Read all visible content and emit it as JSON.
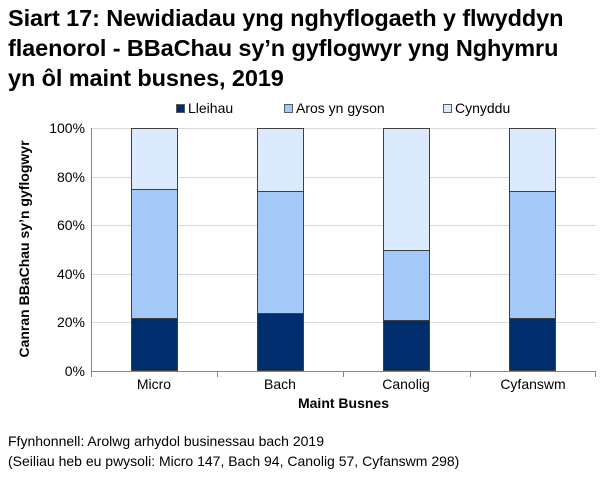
{
  "title": {
    "lines": [
      "Siart 17: Newidiadau yng nghyflogaeth y flwyddyn",
      "flaenorol - BBaChau sy’n gyflogwyr yng Nghymru",
      "yn ôl maint busnes, 2019"
    ]
  },
  "legend": [
    {
      "label": "Lleihau",
      "color": "#002D6B"
    },
    {
      "label": "Aros yn gyson",
      "color": "#A4C8F8"
    },
    {
      "label": "Cynyddu",
      "color": "#DCEAFE"
    }
  ],
  "axes": {
    "y_title": "Canran BBaChau sy’n gyflogwyr",
    "y_ticks": [
      "100%",
      "80%",
      "60%",
      "40%",
      "20%",
      "0%"
    ],
    "x_title": "Maint Busnes"
  },
  "source": {
    "line1": "Ffynhonnell: Arolwg arhydol businessau bach 2019",
    "line2": "(Seiliau heb eu pwysoli: Micro 147, Bach 94, Canolig 57, Cyfanswm 298)"
  },
  "chart_data": {
    "type": "bar",
    "stacked": true,
    "percent_stacked": true,
    "title": "Siart 17: Newidiadau yng nghyflogaeth y flwyddyn flaenorol - BBaChau sy’n gyflogwyr yng Nghymru yn ôl maint busnes, 2019",
    "xlabel": "Maint Busnes",
    "ylabel": "Canran BBaChau sy’n gyflogwyr",
    "ylim": [
      0,
      100
    ],
    "yticks": [
      0,
      20,
      40,
      60,
      80,
      100
    ],
    "ytick_format": "percent",
    "grid": true,
    "legend_position": "top",
    "categories": [
      "Micro",
      "Bach",
      "Canolig",
      "Cyfanswm"
    ],
    "series": [
      {
        "name": "Lleihau",
        "color": "#002D6B",
        "values": [
          22,
          24,
          21,
          22
        ]
      },
      {
        "name": "Aros yn gyson",
        "color": "#A4C8F8",
        "values": [
          53,
          50,
          29,
          52
        ]
      },
      {
        "name": "Cynyddu",
        "color": "#DCEAFE",
        "values": [
          25,
          26,
          50,
          26
        ]
      }
    ],
    "bases_unweighted": {
      "Micro": 147,
      "Bach": 94,
      "Canolig": 57,
      "Cyfanswm": 298
    }
  }
}
